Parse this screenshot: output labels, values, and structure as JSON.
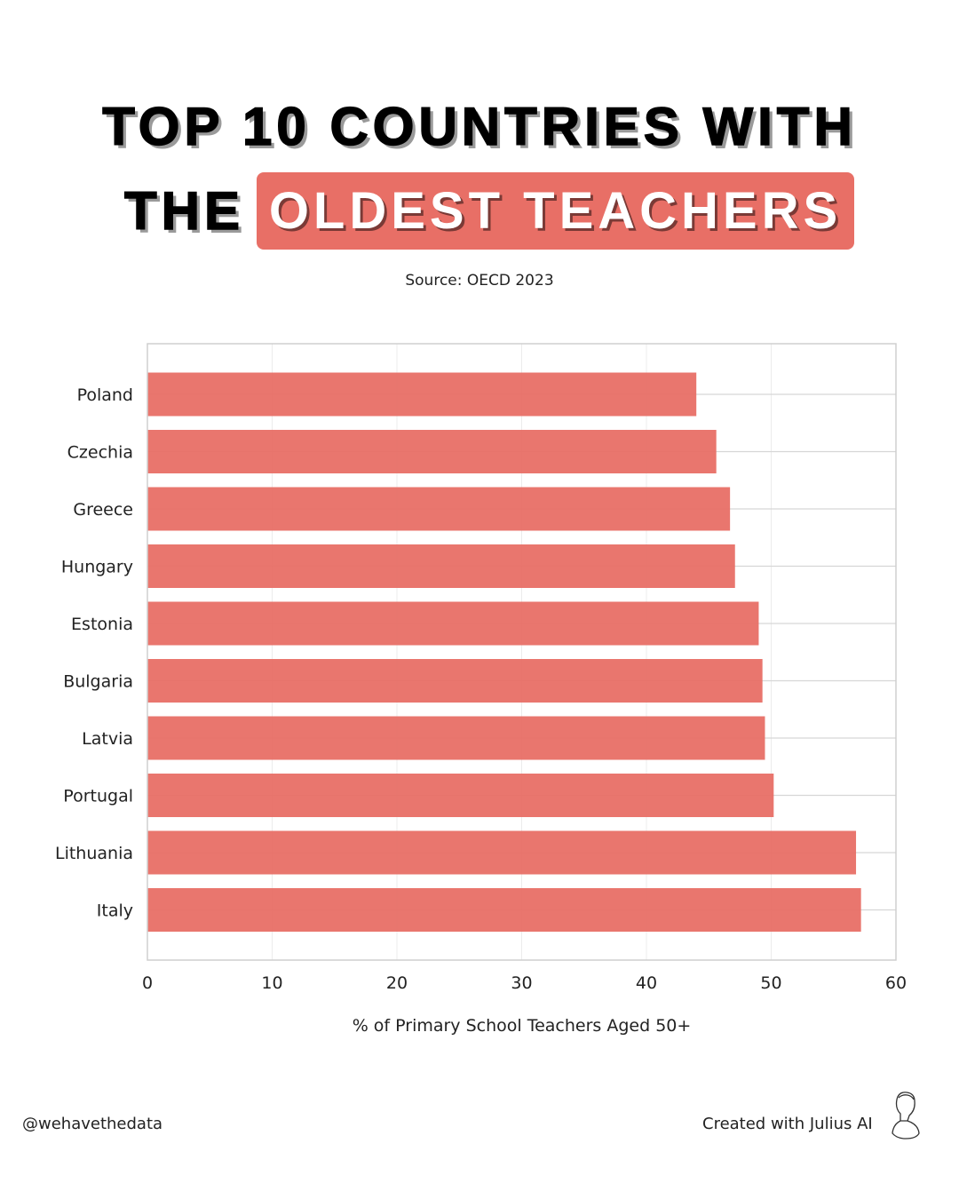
{
  "title_line1": "TOP 10 COUNTRIES WITH",
  "title_line2_prefix": "THE",
  "title_line2_highlight": "OLDEST TEACHERS",
  "source": "Source: OECD 2023",
  "footer_left": "@wehavethedata",
  "footer_right": "Created with Julius AI",
  "colors": {
    "bar": "#e86f66",
    "highlight": "#e86f66"
  },
  "chart_data": {
    "type": "bar",
    "orientation": "horizontal",
    "categories": [
      "Poland",
      "Czechia",
      "Greece",
      "Hungary",
      "Estonia",
      "Bulgaria",
      "Latvia",
      "Portugal",
      "Lithuania",
      "Italy"
    ],
    "values": [
      44.0,
      45.6,
      46.7,
      47.1,
      49.0,
      49.3,
      49.5,
      50.2,
      56.8,
      57.2
    ],
    "xlabel": "% of Primary School Teachers Aged 50+",
    "ylabel": "",
    "xlim": [
      0,
      60
    ],
    "xticks": [
      "0",
      "10",
      "20",
      "30",
      "40",
      "50",
      "60"
    ],
    "grid": true
  }
}
